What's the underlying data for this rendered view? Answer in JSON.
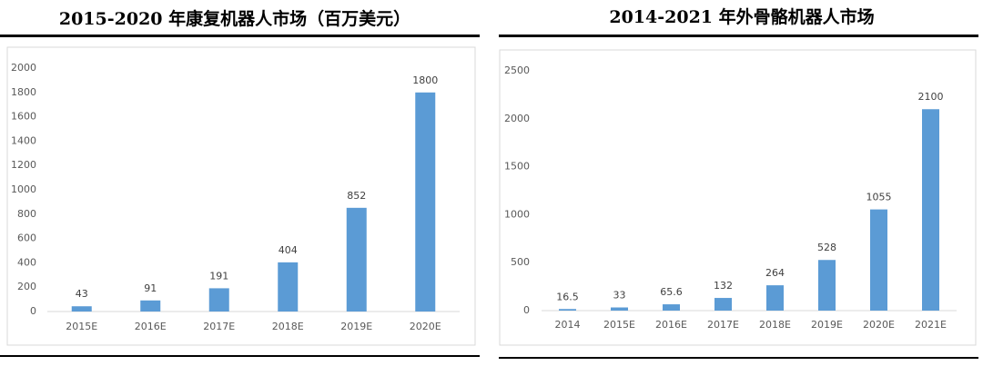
{
  "chart_data": [
    {
      "type": "bar",
      "title": "2015-2020 年康复机器人市场（百万美元）",
      "categories": [
        "2015E",
        "2016E",
        "2017E",
        "2018E",
        "2019E",
        "2020E"
      ],
      "values": [
        43,
        91,
        191,
        404,
        852,
        1800
      ],
      "color": "#5b9bd5",
      "ylim": [
        0,
        2000
      ],
      "yticks": [
        0,
        200,
        400,
        600,
        800,
        1000,
        1200,
        1400,
        1600,
        1800,
        2000
      ]
    },
    {
      "type": "bar",
      "title": "2014-2021 年外骨骼机器人市场",
      "categories": [
        "2014",
        "2015E",
        "2016E",
        "2017E",
        "2018E",
        "2019E",
        "2020E",
        "2021E"
      ],
      "values": [
        16.5,
        33,
        65.6,
        132,
        264,
        528,
        1055,
        2100
      ],
      "color": "#5b9bd5",
      "ylim": [
        0,
        2500
      ],
      "yticks": [
        0,
        500,
        1000,
        1500,
        2000,
        2500
      ]
    }
  ]
}
